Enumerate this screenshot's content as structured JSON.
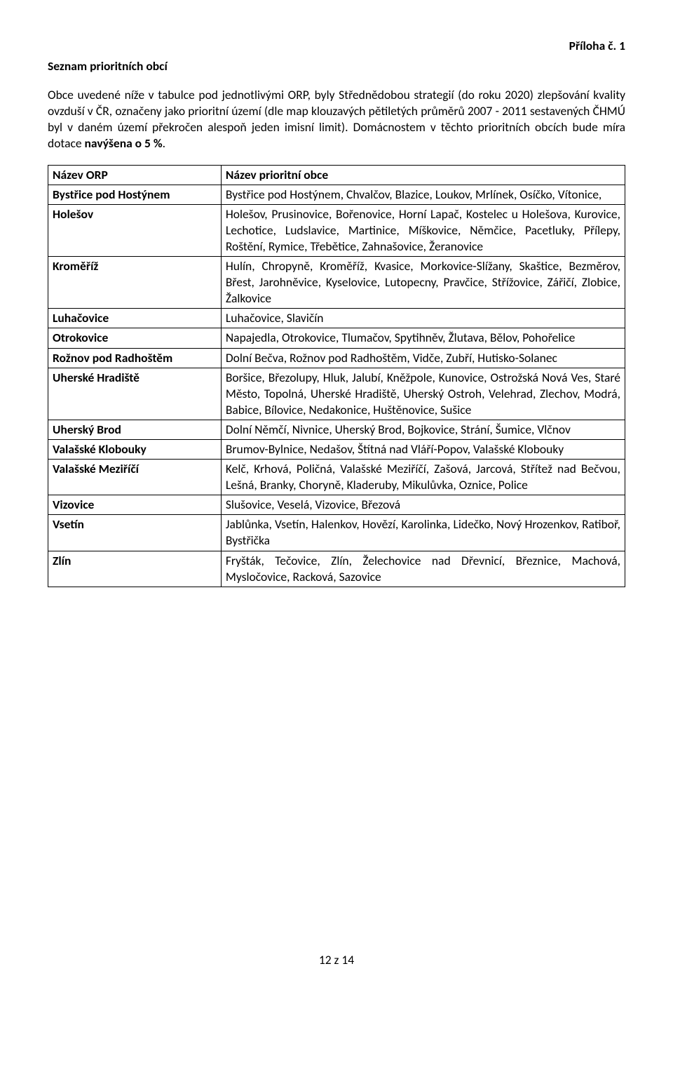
{
  "top_label": "Příloha č. 1",
  "heading": "Seznam prioritních obcí",
  "intro_prefix": "Obce uvedené níže v tabulce pod jednotlivými ORP, byly Střednědobou strategií (do roku 2020) zlepšování kvality ovzduší v ČR, označeny jako prioritní území (dle map klouzavých pětiletých průměrů 2007 - 2011 sestavených ČHMÚ byl v daném území překročen alespoň jeden imisní limit). Domácnostem v těchto prioritních obcích bude míra dotace ",
  "intro_bold": "navýšena o 5 %",
  "intro_suffix": ".",
  "table": {
    "columns": [
      "Název ORP",
      "Název prioritní obce"
    ],
    "rows": [
      [
        "Bystřice pod Hostýnem",
        "Bystřice pod Hostýnem, Chvalčov, Blazice, Loukov, Mrlínek, Osíčko, Vítonice,"
      ],
      [
        "Holešov",
        "Holešov, Prusinovice, Bořenovice, Horní Lapač, Kostelec u Holešova, Kurovice, Lechotice, Ludslavice, Martinice, Míškovice, Němčice, Pacetluky, Přílepy, Roštění, Rymice, Třebětice, Zahnašovice, Žeranovice"
      ],
      [
        "Kroměříž",
        "Hulín, Chropyně, Kroměříž, Kvasice, Morkovice-Slížany, Skaštice, Bezměrov, Břest, Jarohněvice, Kyselovice, Lutopecny, Pravčice, Střížovice, Zářičí, Zlobice, Žalkovice"
      ],
      [
        "Luhačovice",
        "Luhačovice, Slavičín"
      ],
      [
        "Otrokovice",
        "Napajedla, Otrokovice, Tlumačov, Spytihněv, Žlutava, Bělov, Pohořelice"
      ],
      [
        "Rožnov pod Radhoštěm",
        "Dolní Bečva, Rožnov pod Radhoštěm, Vidče, Zubří, Hutisko-Solanec"
      ],
      [
        "Uherské Hradiště",
        "Boršice, Březolupy, Hluk, Jalubí, Kněžpole, Kunovice, Ostrožská Nová Ves, Staré Město, Topolná, Uherské Hradiště, Uherský Ostroh, Velehrad, Zlechov, Modrá, Babice, Bílovice, Nedakonice, Huštěnovice, Sušice"
      ],
      [
        "Uherský Brod",
        "Dolní Němčí, Nivnice, Uherský Brod, Bojkovice, Strání, Šumice, Vlčnov"
      ],
      [
        "Valašské Klobouky",
        "Brumov-Bylnice, Nedašov, Štítná nad Vláří-Popov, Valašské Klobouky"
      ],
      [
        "Valašské Meziříčí",
        "Kelč, Krhová, Poličná, Valašské Meziříčí, Zašová, Jarcová, Střítež nad Bečvou, Lešná, Branky, Choryně, Kladeruby, Mikulůvka, Oznice, Police"
      ],
      [
        "Vizovice",
        "Slušovice, Veselá, Vizovice, Březová"
      ],
      [
        "Vsetín",
        "Jablůnka, Vsetín, Halenkov, Hovězí, Karolinka, Lidečko, Nový Hrozenkov, Ratiboř, Bystřička"
      ],
      [
        "Zlín",
        "Fryšták, Tečovice, Zlín, Želechovice nad Dřevnicí, Březnice, Machová, Mysločovice, Racková, Sazovice"
      ]
    ]
  },
  "footer": "12 z 14"
}
